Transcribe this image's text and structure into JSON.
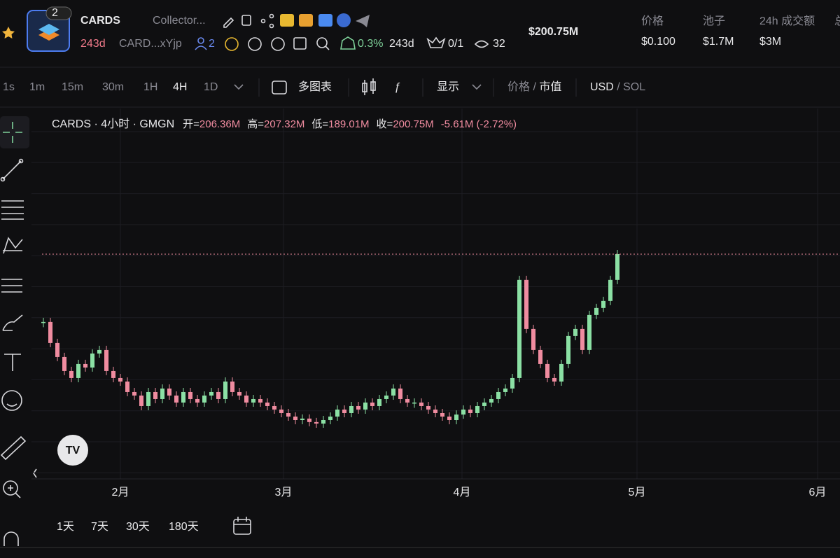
{
  "header": {
    "name": "CARDS",
    "subtitle": "Collector...",
    "badge": "2",
    "age": "243d",
    "address": "CARD...xYjp",
    "holders": "2",
    "change": "0.3%",
    "age2": "243d",
    "ratio": "0/1",
    "views": "32",
    "market_cap": "$200.75M",
    "stats": [
      {
        "label": "价格",
        "value": "$0.100"
      },
      {
        "label": "池子",
        "value": "$1.7M"
      },
      {
        "label": "24h 成交额",
        "value": "$3M"
      }
    ],
    "stats_cut": "总"
  },
  "toolbar": {
    "intervals": [
      "1s",
      "1m",
      "15m",
      "30m",
      "1H",
      "4H",
      "1D"
    ],
    "active_interval": 5,
    "multi_chart": "多图表",
    "display": "显示",
    "price_mode": [
      "价格",
      " / ",
      "市值"
    ],
    "currency": [
      "USD",
      " / SOL"
    ]
  },
  "chart": {
    "legend": {
      "symbol": "CARDS · 4小时 · GMGN",
      "fields": [
        {
          "label": "开=",
          "value": "206.36M"
        },
        {
          "label": "高=",
          "value": "207.32M"
        },
        {
          "label": "低=",
          "value": "189.01M"
        },
        {
          "label": "收=",
          "value": "200.75M"
        }
      ],
      "change": "-5.61M (-2.72%)"
    },
    "x_labels": [
      "2月",
      "3月",
      "4月",
      "5月",
      "6月"
    ],
    "closes": [
      187.2,
      183.0,
      180.2,
      177.4,
      176.0,
      178.8,
      178.1,
      180.9,
      181.6,
      177.4,
      176.0,
      175.3,
      173.2,
      172.5,
      170.4,
      173.2,
      171.8,
      173.9,
      172.5,
      171.1,
      173.2,
      171.8,
      171.1,
      172.5,
      173.2,
      171.8,
      175.3,
      173.2,
      172.5,
      171.1,
      171.8,
      171.1,
      170.4,
      169.7,
      169.0,
      168.3,
      167.6,
      167.9,
      167.2,
      166.9,
      167.6,
      168.3,
      169.7,
      169.0,
      170.4,
      169.7,
      171.1,
      170.4,
      171.8,
      172.5,
      173.9,
      171.8,
      171.1,
      171.1,
      170.4,
      169.7,
      169.0,
      168.3,
      167.6,
      168.7,
      169.7,
      169.0,
      170.4,
      171.1,
      171.8,
      173.2,
      173.9,
      176.0,
      195.6,
      185.8,
      181.6,
      178.8,
      176.0,
      175.3,
      178.8,
      184.4,
      185.8,
      181.6,
      188.6,
      190.0,
      191.4,
      195.6,
      200.75
    ]
  },
  "ranges": [
    "1天",
    "7天",
    "30天",
    "180天"
  ]
}
